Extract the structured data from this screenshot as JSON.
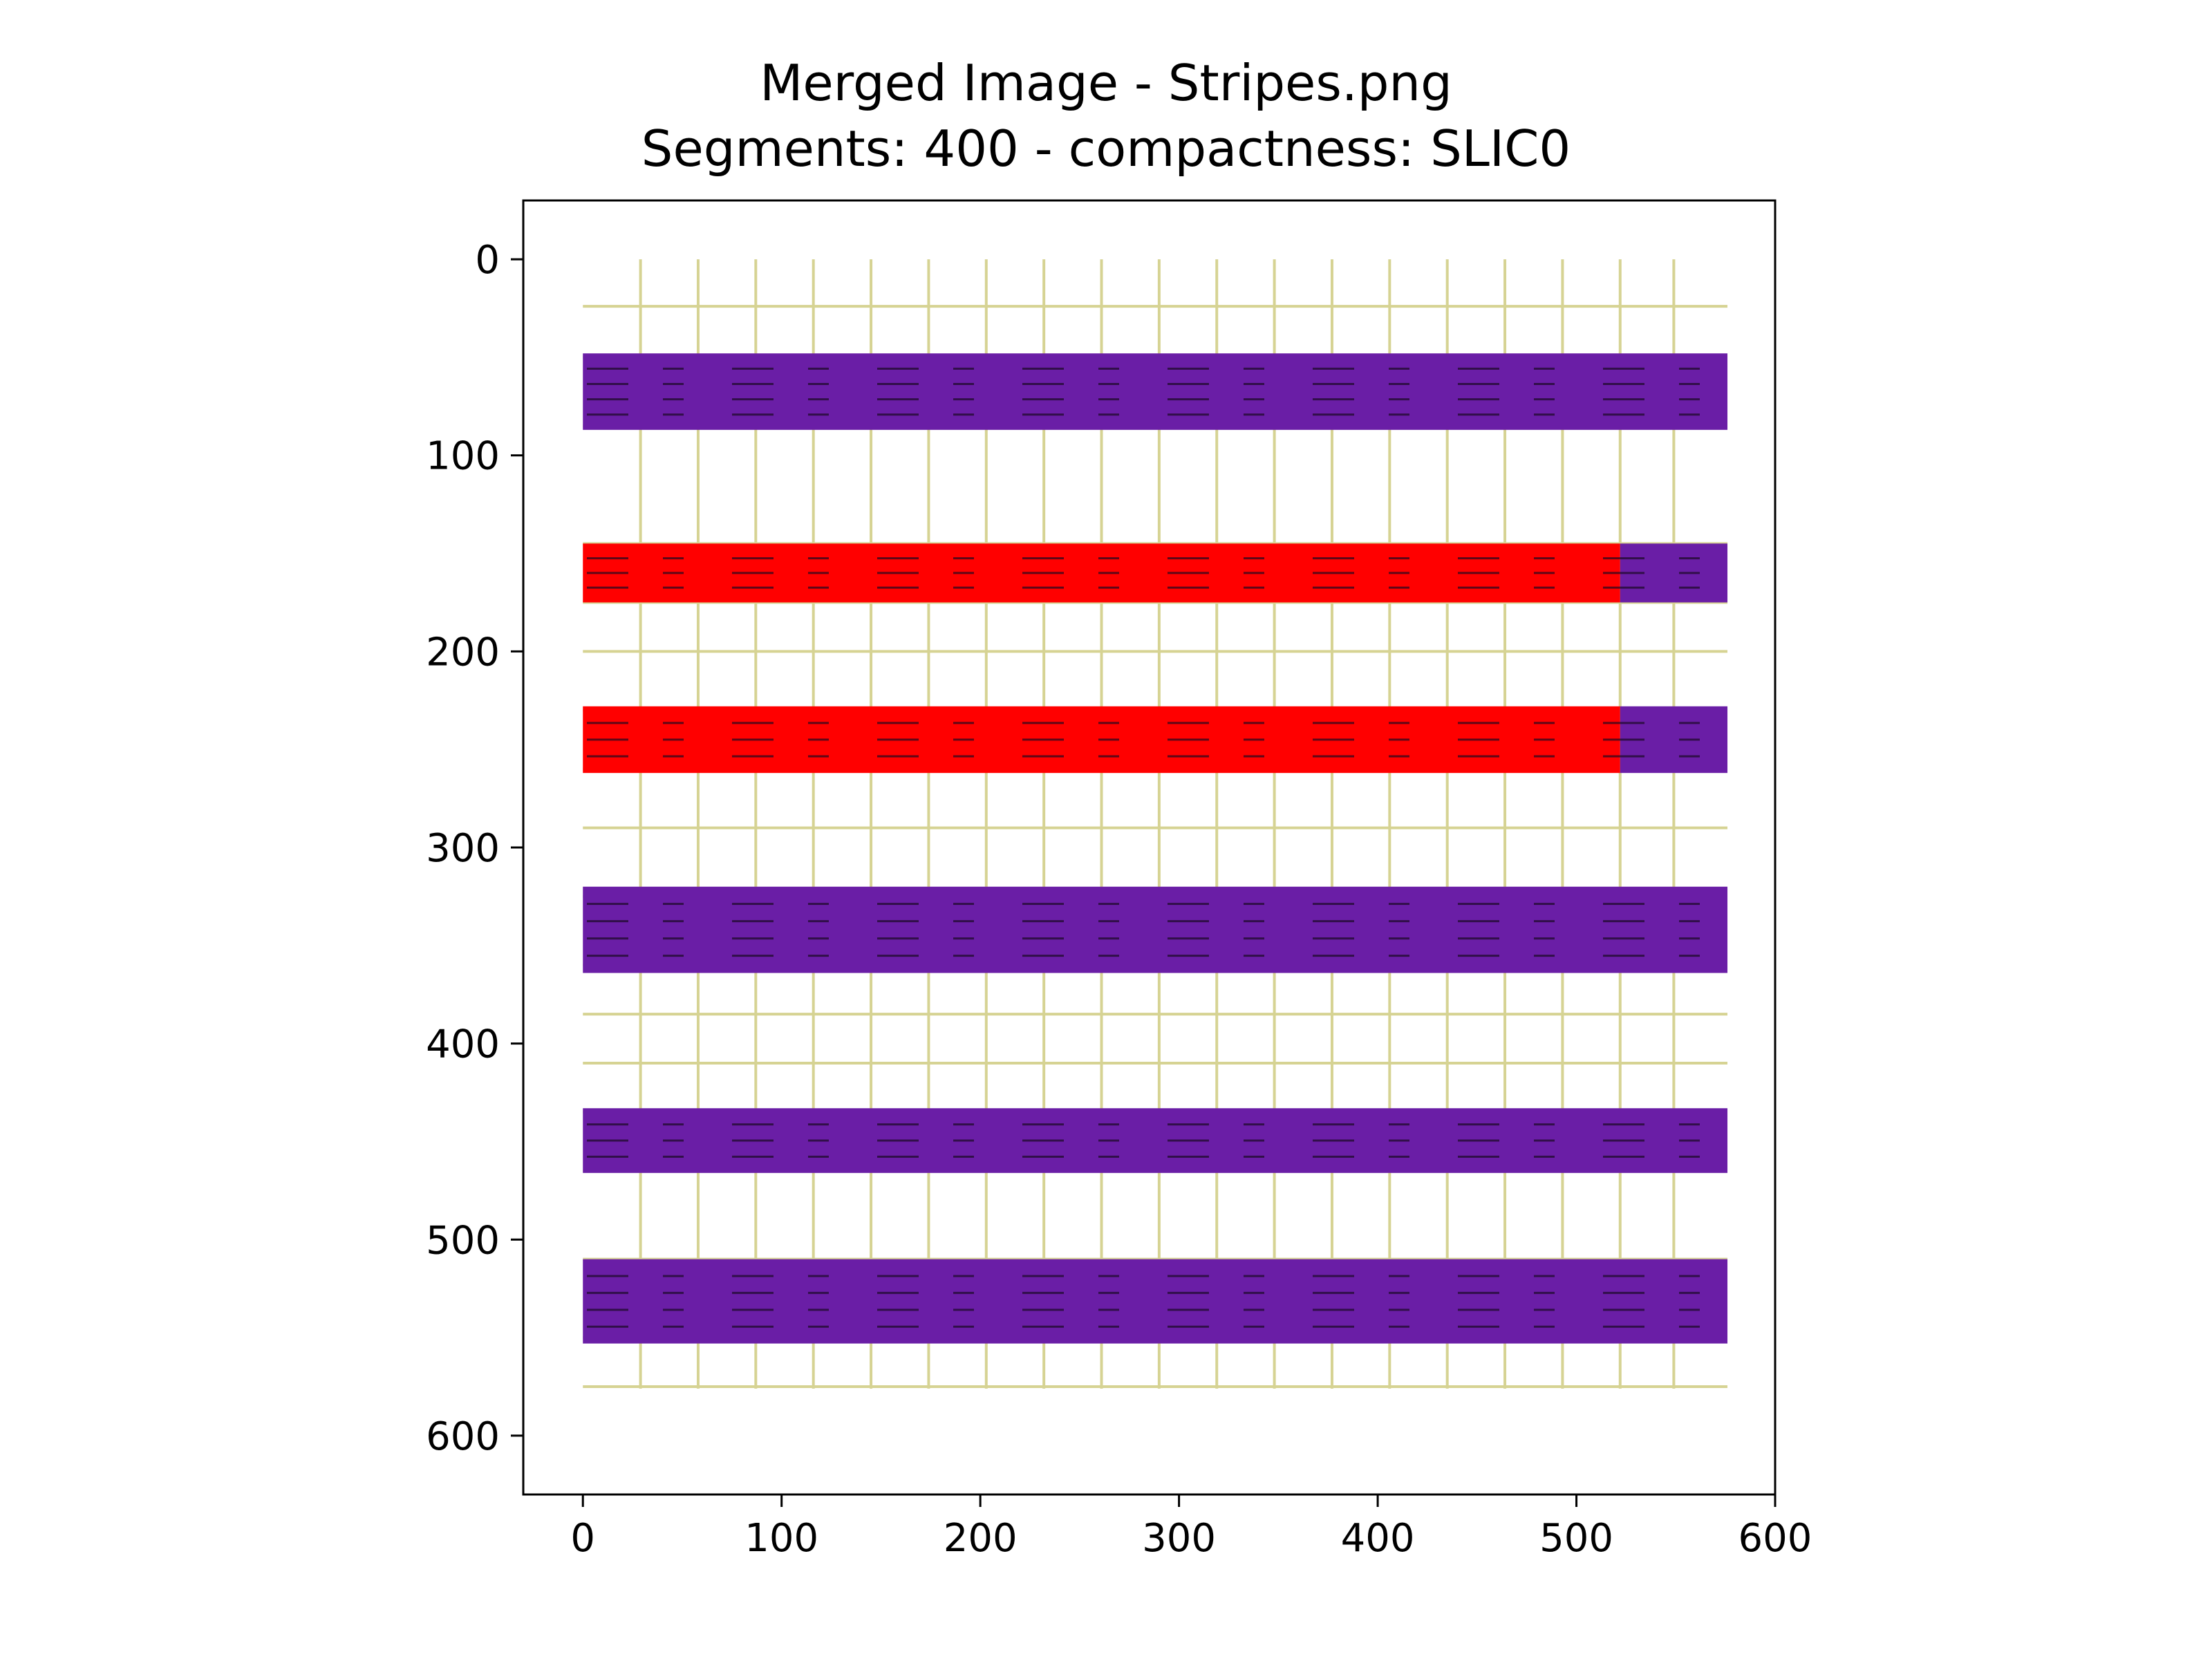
{
  "chart_data": {
    "type": "heatmap",
    "title_lines": [
      "Merged Image - Stripes.png",
      "Segments: 400 - compactness: SLIC0"
    ],
    "xlabel": "",
    "ylabel": "",
    "xlim": [
      -30,
      600
    ],
    "ylim": [
      630,
      -30
    ],
    "x_ticks": [
      0,
      100,
      200,
      300,
      400,
      500,
      600
    ],
    "y_ticks": [
      0,
      100,
      200,
      300,
      400,
      500,
      600
    ],
    "image_extent": {
      "x": [
        0,
        576
      ],
      "y": [
        0,
        576
      ]
    },
    "segment_grid": {
      "vertical_lines": [
        29,
        58,
        87,
        116,
        145,
        174,
        203,
        232,
        261,
        290,
        319,
        348,
        377,
        406,
        435,
        464,
        493,
        522,
        549
      ],
      "horizontal_lines": [
        24,
        50,
        85,
        145,
        175,
        200,
        230,
        260,
        290,
        325,
        360,
        385,
        410,
        435,
        465,
        510,
        550,
        575
      ],
      "color": "#d6d393"
    },
    "stripes": [
      {
        "y": [
          48,
          87
        ],
        "regions": [
          {
            "x": [
              0,
              576
            ],
            "color": "#6a1ea6"
          }
        ]
      },
      {
        "y": [
          145,
          175
        ],
        "regions": [
          {
            "x": [
              0,
              522
            ],
            "color": "#ff0000"
          },
          {
            "x": [
              522,
              576
            ],
            "color": "#6a1ea6"
          }
        ]
      },
      {
        "y": [
          228,
          262
        ],
        "regions": [
          {
            "x": [
              0,
              522
            ],
            "color": "#ff0000"
          },
          {
            "x": [
              522,
              576
            ],
            "color": "#6a1ea6"
          }
        ]
      },
      {
        "y": [
          320,
          364
        ],
        "regions": [
          {
            "x": [
              0,
              576
            ],
            "color": "#6a1ea6"
          }
        ]
      },
      {
        "y": [
          433,
          466
        ],
        "regions": [
          {
            "x": [
              0,
              576
            ],
            "color": "#6a1ea6"
          }
        ]
      },
      {
        "y": [
          510,
          553
        ],
        "regions": [
          {
            "x": [
              0,
              576
            ],
            "color": "#6a1ea6"
          }
        ]
      }
    ],
    "grid": false
  }
}
